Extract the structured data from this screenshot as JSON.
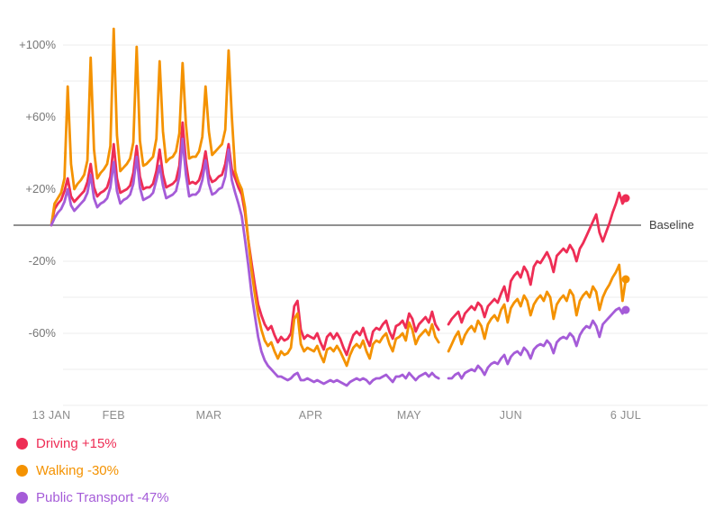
{
  "chart_data": {
    "type": "line",
    "title": "",
    "baseline_label": "Baseline",
    "grid": true,
    "legend_position": "bottom-left",
    "num_points": 176,
    "x_axis": {
      "start": "13 JAN",
      "end": "6 JUL",
      "ticks": [
        {
          "index": 0,
          "label": "13 JAN"
        },
        {
          "index": 19,
          "label": "FEB"
        },
        {
          "index": 48,
          "label": "MAR"
        },
        {
          "index": 79,
          "label": "APR"
        },
        {
          "index": 109,
          "label": "MAY"
        },
        {
          "index": 140,
          "label": "JUN"
        },
        {
          "index": 175,
          "label": "6 JUL"
        }
      ]
    },
    "y_axis": {
      "unit": "%",
      "ylim": [
        -100,
        100
      ],
      "gridline_values": [
        100,
        80,
        60,
        40,
        20,
        -20,
        -40,
        -60,
        -80,
        -100
      ],
      "baseline_value": 0,
      "ticks": [
        {
          "value": 100,
          "label": "+100%"
        },
        {
          "value": 60,
          "label": "+60%"
        },
        {
          "value": 20,
          "label": "+20%"
        },
        {
          "value": -20,
          "label": "-20%"
        },
        {
          "value": -60,
          "label": "-60%"
        }
      ]
    },
    "colors": {
      "gridline": "#ececec",
      "baseline": "#4d4d4d"
    },
    "gap_note": "values are null where the line is interrupted (mid-May data gap)",
    "series": [
      {
        "id": "driving",
        "name": "Driving",
        "legend_label": "Driving +15%",
        "current_value": "+15%",
        "color": "#ee2d55",
        "values": [
          0,
          9,
          12,
          14,
          19,
          26,
          16,
          13,
          15,
          17,
          19,
          24,
          34,
          21,
          16,
          18,
          19,
          21,
          27,
          45,
          26,
          18,
          19,
          20,
          22,
          29,
          44,
          27,
          20,
          21,
          21,
          23,
          30,
          42,
          28,
          21,
          22,
          23,
          25,
          33,
          57,
          35,
          23,
          24,
          23,
          25,
          31,
          41,
          28,
          24,
          25,
          27,
          28,
          34,
          45,
          31,
          26,
          21,
          17,
          7,
          -8,
          -21,
          -33,
          -44,
          -50,
          -55,
          -58,
          -56,
          -61,
          -65,
          -62,
          -64,
          -63,
          -60,
          -45,
          -42,
          -58,
          -63,
          -61,
          -62,
          -63,
          -60,
          -65,
          -69,
          -62,
          -60,
          -63,
          -60,
          -63,
          -68,
          -72,
          -66,
          -61,
          -59,
          -61,
          -57,
          -63,
          -67,
          -59,
          -57,
          -58,
          -55,
          -53,
          -59,
          -63,
          -56,
          -55,
          -53,
          -57,
          -49,
          -52,
          -59,
          -55,
          -53,
          -51,
          -54,
          -48,
          -55,
          -58,
          null,
          null,
          -55,
          -52,
          -50,
          -48,
          -54,
          -49,
          -47,
          -45,
          -47,
          -43,
          -45,
          -51,
          -45,
          -43,
          -41,
          -43,
          -38,
          -34,
          -42,
          -31,
          -28,
          -26,
          -29,
          -23,
          -26,
          -33,
          -23,
          -20,
          -21,
          -18,
          -15,
          -19,
          -26,
          -17,
          -15,
          -13,
          -15,
          -11,
          -14,
          -20,
          -13,
          -10,
          -6,
          -2,
          2,
          6,
          -4,
          -9,
          -4,
          1,
          7,
          12,
          18,
          12,
          15
        ]
      },
      {
        "id": "walking",
        "name": "Walking",
        "legend_label": "Walking -30%",
        "current_value": "-30%",
        "color": "#f49200",
        "values": [
          0,
          12,
          15,
          18,
          26,
          77,
          34,
          20,
          23,
          25,
          28,
          36,
          93,
          42,
          26,
          29,
          31,
          34,
          44,
          109,
          50,
          30,
          32,
          34,
          37,
          46,
          99,
          47,
          33,
          34,
          36,
          38,
          48,
          91,
          52,
          35,
          37,
          38,
          41,
          51,
          90,
          56,
          37,
          38,
          38,
          41,
          49,
          77,
          52,
          39,
          41,
          43,
          45,
          53,
          97,
          60,
          30,
          24,
          20,
          10,
          -8,
          -25,
          -38,
          -50,
          -58,
          -64,
          -67,
          -65,
          -70,
          -74,
          -70,
          -72,
          -71,
          -68,
          -52,
          -49,
          -66,
          -70,
          -68,
          -69,
          -70,
          -67,
          -72,
          -76,
          -69,
          -68,
          -70,
          -67,
          -70,
          -74,
          -78,
          -72,
          -68,
          -66,
          -68,
          -64,
          -70,
          -74,
          -66,
          -64,
          -65,
          -62,
          -60,
          -66,
          -70,
          -63,
          -62,
          -60,
          -64,
          -54,
          -58,
          -66,
          -62,
          -60,
          -58,
          -61,
          -55,
          -62,
          -65,
          null,
          null,
          -70,
          -66,
          -62,
          -59,
          -66,
          -61,
          -58,
          -56,
          -59,
          -53,
          -56,
          -63,
          -55,
          -52,
          -50,
          -53,
          -47,
          -44,
          -54,
          -46,
          -43,
          -41,
          -45,
          -39,
          -42,
          -50,
          -44,
          -41,
          -39,
          -42,
          -37,
          -40,
          -52,
          -44,
          -41,
          -39,
          -42,
          -36,
          -39,
          -50,
          -42,
          -39,
          -37,
          -40,
          -34,
          -37,
          -47,
          -40,
          -36,
          -33,
          -29,
          -26,
          -22,
          -42,
          -30
        ]
      },
      {
        "id": "public-transport",
        "name": "Public Transport",
        "legend_label": "Public Transport -47%",
        "current_value": "-47%",
        "color": "#a55cd8",
        "values": [
          0,
          4,
          7,
          9,
          13,
          20,
          11,
          8,
          10,
          12,
          14,
          18,
          28,
          15,
          10,
          12,
          13,
          15,
          21,
          35,
          19,
          12,
          14,
          15,
          17,
          23,
          38,
          21,
          14,
          15,
          16,
          18,
          25,
          33,
          22,
          15,
          16,
          17,
          19,
          27,
          48,
          28,
          16,
          17,
          17,
          19,
          25,
          36,
          23,
          17,
          18,
          20,
          21,
          27,
          42,
          25,
          18,
          12,
          5,
          -8,
          -22,
          -38,
          -50,
          -62,
          -70,
          -75,
          -78,
          -80,
          -82,
          -84,
          -84,
          -85,
          -86,
          -85,
          -83,
          -82,
          -86,
          -86,
          -85,
          -86,
          -87,
          -86,
          -87,
          -88,
          -87,
          -86,
          -87,
          -86,
          -87,
          -88,
          -89,
          -87,
          -86,
          -85,
          -86,
          -85,
          -86,
          -88,
          -86,
          -85,
          -85,
          -84,
          -83,
          -85,
          -87,
          -84,
          -84,
          -83,
          -85,
          -82,
          -84,
          -86,
          -84,
          -83,
          -82,
          -84,
          -82,
          -84,
          -85,
          null,
          null,
          -85,
          -85,
          -83,
          -82,
          -85,
          -82,
          -81,
          -80,
          -81,
          -78,
          -80,
          -83,
          -79,
          -77,
          -76,
          -77,
          -74,
          -72,
          -77,
          -73,
          -71,
          -70,
          -72,
          -68,
          -70,
          -74,
          -69,
          -67,
          -66,
          -67,
          -64,
          -66,
          -71,
          -65,
          -63,
          -62,
          -63,
          -60,
          -62,
          -67,
          -61,
          -58,
          -56,
          -57,
          -53,
          -56,
          -62,
          -55,
          -53,
          -51,
          -49,
          -47,
          -46,
          -49,
          -47
        ]
      }
    ]
  }
}
